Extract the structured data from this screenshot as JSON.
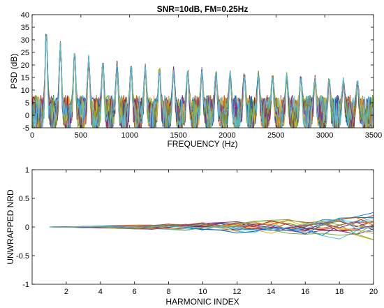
{
  "chart_data": [
    {
      "type": "line",
      "title": "SNR=10dB, FM=0.25Hz",
      "xlabel": "FREQUENCY (Hz)",
      "ylabel": "PSD (dB)",
      "xlim": [
        0,
        3500
      ],
      "ylim": [
        -5,
        40
      ],
      "xticks": [
        0,
        500,
        1000,
        1500,
        2000,
        2500,
        3000,
        3500
      ],
      "yticks": [
        -5,
        0,
        5,
        10,
        15,
        20,
        25,
        30,
        35,
        40
      ],
      "grid": false,
      "fundamental_hz": 145,
      "harmonic_count": 23,
      "harmonic_peaks_db": [
        34,
        28.5,
        25.5,
        23,
        21.5,
        20.5,
        20,
        19.5,
        19,
        18.5,
        18,
        18,
        17.5,
        17,
        17,
        16.5,
        16,
        16,
        15.5,
        15,
        14.5,
        14,
        13.5
      ],
      "noise_floor_db": [
        -5,
        7
      ],
      "series_count": 20
    },
    {
      "type": "line",
      "title": "",
      "xlabel": "HARMONIC INDEX",
      "ylabel": "UNWRAPPED NRD",
      "xlim": [
        0,
        20
      ],
      "ylim": [
        -1,
        1
      ],
      "xticks": [
        2,
        4,
        6,
        8,
        10,
        12,
        14,
        16,
        18,
        20
      ],
      "yticks": [
        -1,
        -0.5,
        0,
        0.5,
        1
      ],
      "grid": false,
      "x": [
        1,
        20
      ],
      "y_start": 0,
      "y_spread_at_end": [
        -0.35,
        0.27
      ],
      "series_count": 20
    }
  ],
  "colors": [
    "#0072bd",
    "#d95319",
    "#edb120",
    "#7e2f8e",
    "#77ac30",
    "#4dbeee",
    "#a2142f"
  ]
}
